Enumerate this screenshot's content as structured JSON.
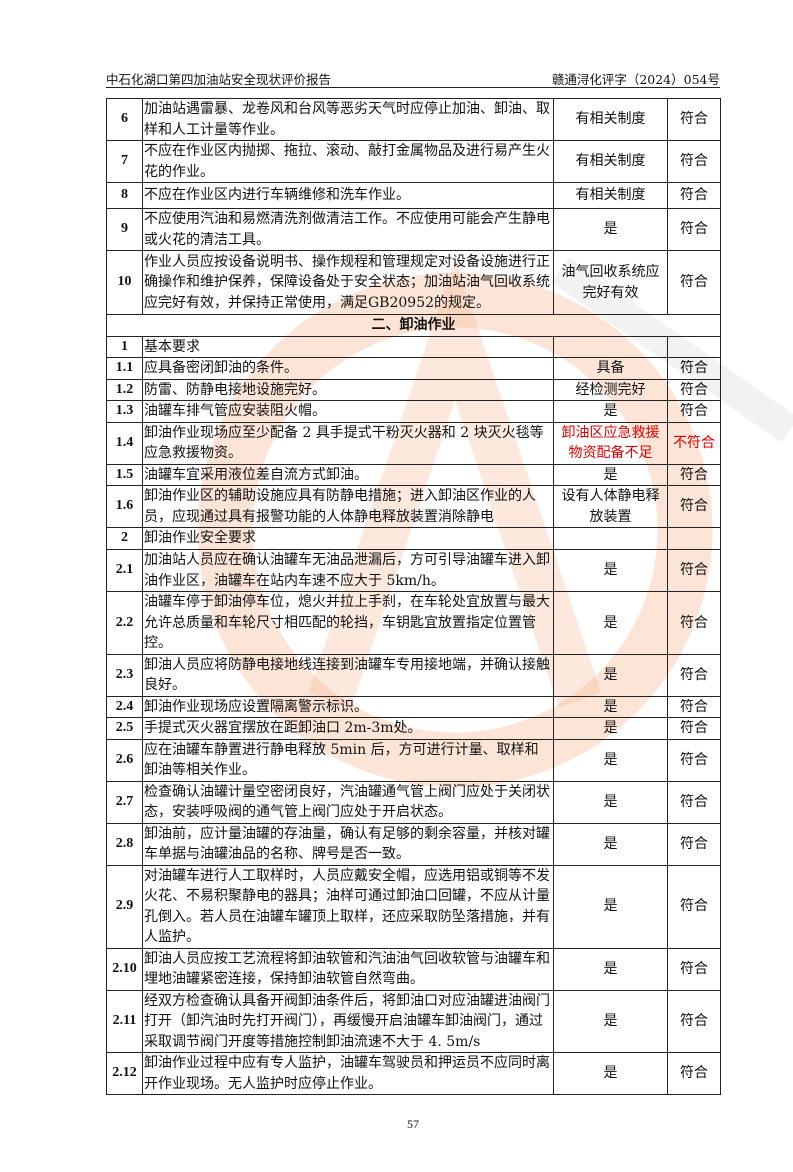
{
  "header": {
    "left": "中石化湖口第四加油站安全现状评价报告",
    "right": "赣通浔化评字（2024）054号"
  },
  "rows": [
    {
      "no": "6",
      "content": "加油站遇雷暴、龙卷风和台风等恶劣天气时应停止加油、卸油、取样和人工计量等作业。",
      "result": "有相关制度",
      "conclusion": "符合"
    },
    {
      "no": "7",
      "content": "不应在作业区内抛掷、拖拉、滚动、敲打金属物品及进行易产生火花的作业。",
      "result": "有相关制度",
      "conclusion": "符合"
    },
    {
      "no": "8",
      "content": "不应在作业区内进行车辆维修和洗车作业。",
      "result": "有相关制度",
      "conclusion": "符合"
    },
    {
      "no": "9",
      "content": "不应使用汽油和易燃清洗剂做清洁工作。不应使用可能会产生静电或火花的清洁工具。",
      "result": "是",
      "conclusion": "符合"
    },
    {
      "no": "10",
      "content": "作业人员应按设备说明书、操作规程和管理规定对设备设施进行正确操作和维护保养，保障设备处于安全状态；加油站油气回收系统应完好有效，并保持正常使用，满足GB20952的规定。",
      "result": "油气回收系统应完好有效",
      "conclusion": "符合"
    },
    {
      "section": "二、卸油作业"
    },
    {
      "no": "1",
      "content": "基本要求",
      "result": "",
      "conclusion": ""
    },
    {
      "no": "1.1",
      "content": "应具备密闭卸油的条件。",
      "result": "具备",
      "conclusion": "符合"
    },
    {
      "no": "1.2",
      "content": "防雷、防静电接地设施完好。",
      "result": "经检测完好",
      "conclusion": "符合"
    },
    {
      "no": "1.3",
      "content": "油罐车排气管应安装阻火帽。",
      "result": "是",
      "conclusion": "符合"
    },
    {
      "no": "1.4",
      "content": "卸油作业现场应至少配备 2 具手提式干粉灭火器和 2 块灭火毯等应急救援物资。",
      "result": "卸油区应急救援物资配备不足",
      "conclusion": "不符合",
      "flag": true
    },
    {
      "no": "1.5",
      "content": "油罐车宜采用液位差自流方式卸油。",
      "result": "是",
      "conclusion": "符合"
    },
    {
      "no": "1.6",
      "content": "卸油作业区的辅助设施应具有防静电措施；进入卸油区作业的人员，应现通过具有报警功能的人体静电释放装置消除静电",
      "result": "设有人体静电释放装置",
      "conclusion": "符合"
    },
    {
      "no": "2",
      "content": "卸油作业安全要求",
      "result": "",
      "conclusion": ""
    },
    {
      "no": "2.1",
      "content": "加油站人员应在确认油罐车无油品泄漏后，方可引导油罐车进入卸油作业区，油罐车在站内车速不应大于 5km/h。",
      "result": "是",
      "conclusion": "符合"
    },
    {
      "no": "2.2",
      "content": "油罐车停于卸油停车位，熄火并拉上手刹，在车轮处宜放置与最大允许总质量和车轮尺寸相匹配的轮挡，车钥匙宜放置指定位置管控。",
      "result": "是",
      "conclusion": "符合"
    },
    {
      "no": "2.3",
      "content": "卸油人员应将防静电接地线连接到油罐车专用接地端，并确认接触良好。",
      "result": "是",
      "conclusion": "符合"
    },
    {
      "no": "2.4",
      "content": "卸油作业现场应设置隔离警示标识。",
      "result": "是",
      "conclusion": "符合"
    },
    {
      "no": "2.5",
      "content": "手提式灭火器宜摆放在距卸油口 2m-3m处。",
      "result": "是",
      "conclusion": "符合"
    },
    {
      "no": "2.6",
      "content": "应在油罐车静置进行静电释放 5min 后，方可进行计量、取样和卸油等相关作业。",
      "result": "是",
      "conclusion": "符合"
    },
    {
      "no": "2.7",
      "content": "检查确认油罐计量空密闭良好，汽油罐通气管上阀门应处于关闭状态，安装呼吸阀的通气管上阀门应处于开启状态。",
      "result": "是",
      "conclusion": "符合"
    },
    {
      "no": "2.8",
      "content": "卸油前，应计量油罐的存油量，确认有足够的剩余容量，并核对罐车单据与油罐油品的名称、牌号是否一致。",
      "result": "是",
      "conclusion": "符合"
    },
    {
      "no": "2.9",
      "content": "对油罐车进行人工取样时，人员应戴安全帽，应选用铝或铜等不发火花、不易积聚静电的器具；油样可通过卸油口回罐，不应从计量孔倒入。若人员在油罐车罐顶上取样，还应采取防坠落措施，并有人监护。",
      "result": "是",
      "conclusion": "符合"
    },
    {
      "no": "2.10",
      "content": "卸油人员应按工艺流程将卸油软管和汽油油气回收软管与油罐车和埋地油罐紧密连接，保持卸油软管自然弯曲。",
      "result": "是",
      "conclusion": "符合"
    },
    {
      "no": "2.11",
      "content": "经双方检查确认具备开阀卸油条件后，将卸油口对应油罐进油阀门打开（卸汽油时先打开阀门），再缓慢开启油罐车卸油阀门，通过采取调节阀门开度等措施控制卸油流速不大于 4. 5m/s",
      "result": "是",
      "conclusion": "符合"
    },
    {
      "no": "2.12",
      "content": "卸油作业过程中应有专人监护，油罐车驾驶员和押运员不应同时离开作业现场。无人监护时应停止作业。",
      "result": "是",
      "conclusion": "符合"
    }
  ],
  "page_number": "57",
  "colors": {
    "nonconform": "#e00000",
    "watermark": "#f3a77a"
  }
}
